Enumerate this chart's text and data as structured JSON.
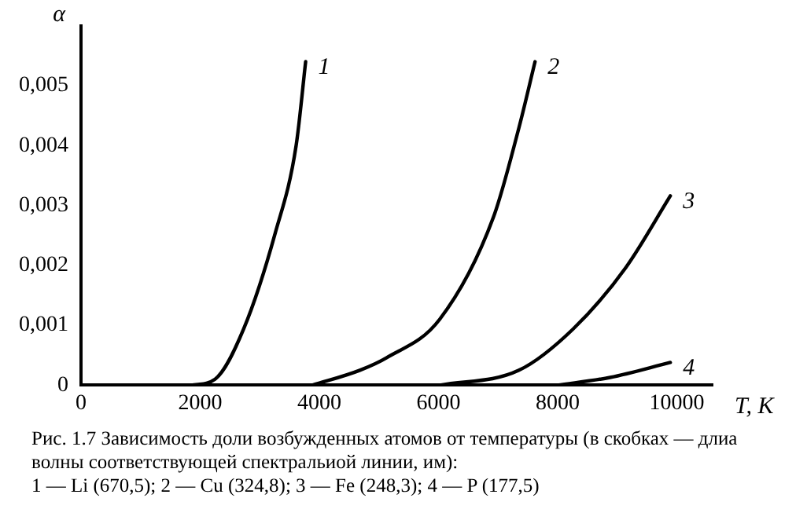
{
  "chart_data": {
    "type": "line",
    "xlabel": "T, K",
    "ylabel": "α",
    "xlim": [
      0,
      10600
    ],
    "xticks": [
      0,
      2000,
      4000,
      6000,
      8000,
      10000
    ],
    "ylim": [
      0,
      0.006
    ],
    "yticks": [
      {
        "value": 0,
        "label": "0"
      },
      {
        "value": 0.001,
        "label": "0,001"
      },
      {
        "value": 0.002,
        "label": "0,002"
      },
      {
        "value": 0.003,
        "label": "0,003"
      },
      {
        "value": 0.004,
        "label": "0,004"
      },
      {
        "value": 0.005,
        "label": "0,005"
      }
    ],
    "grid": false,
    "legend": false,
    "marker": "none",
    "line_style": "solid",
    "series": [
      {
        "name": "1",
        "color": "#000000",
        "x": [
          1850,
          2250,
          2730,
          3260,
          3610,
          3770
        ],
        "values": [
          0,
          0.0001,
          0.00094,
          0.00254,
          0.004,
          0.0054
        ]
      },
      {
        "name": "2",
        "color": "#000000",
        "x": [
          3880,
          4680,
          5130,
          6020,
          6920,
          7350,
          7620
        ],
        "values": [
          0,
          0.00025,
          0.00046,
          0.0011,
          0.0028,
          0.0043,
          0.0054
        ]
      },
      {
        "name": "3",
        "color": "#000000",
        "x": [
          6020,
          7350,
          8260,
          9140,
          9890
        ],
        "values": [
          0,
          0.00025,
          0.00094,
          0.00196,
          0.00316
        ]
      },
      {
        "name": "4",
        "color": "#000000",
        "x": [
          7990,
          8880,
          9890
        ],
        "values": [
          0,
          0.00013,
          0.00038
        ]
      }
    ],
    "annotations": [
      "Рис. 1.7 Зависимость доли возбужденных атомов от температуры (в скобках — длиа волны соответствующей спектральиой линии, им):",
      "1 — Li (670,5); 2 — Cu (324,8); 3 — Fe (248,3); 4 — P (177,5)"
    ]
  }
}
